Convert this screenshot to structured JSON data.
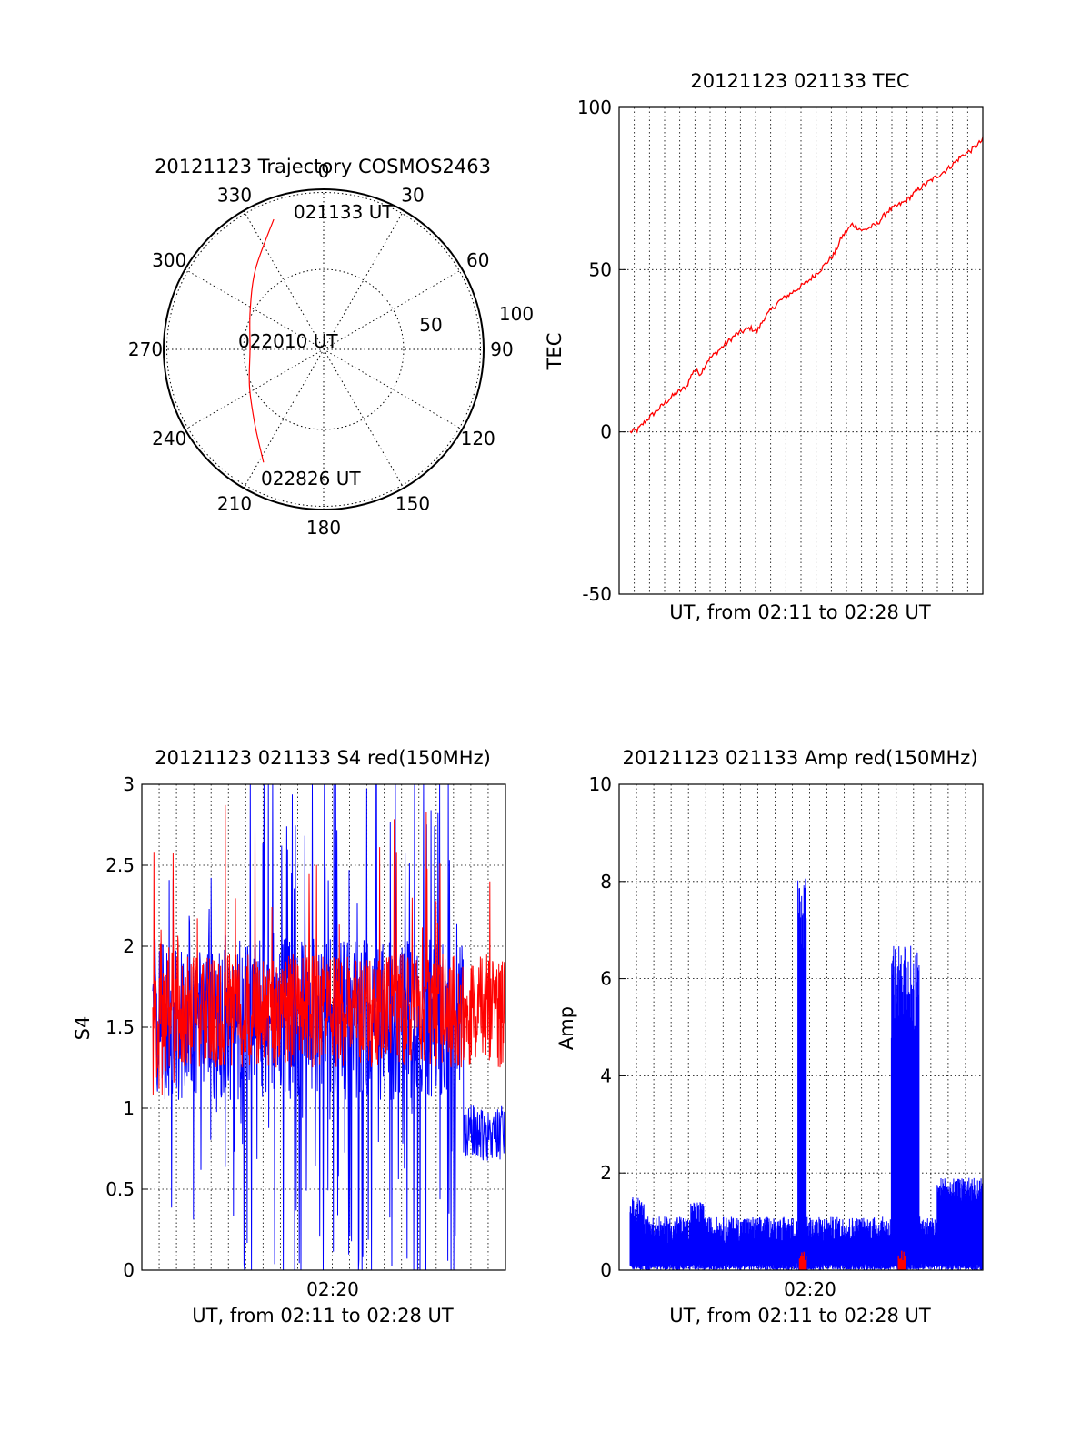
{
  "chart_data": [
    {
      "type": "polar",
      "title": "20121123 Trajectory COSMOS2463",
      "angle_ticks": [
        "0",
        "30",
        "60",
        "90",
        "120",
        "150",
        "180",
        "210",
        "240",
        "270",
        "300",
        "330"
      ],
      "radius_ticks": [
        "50",
        "100"
      ],
      "rlim": [
        0,
        100
      ],
      "grid": true,
      "annotations": [
        "021133 UT",
        "022010 UT",
        "022826 UT"
      ],
      "series": [
        {
          "color": "#ff0000",
          "points": [
            {
              "azimuth": 339,
              "radius": 87
            },
            {
              "azimuth": 320,
              "radius": 66
            },
            {
              "azimuth": 298,
              "radius": 52
            },
            {
              "azimuth": 270,
              "radius": 46
            },
            {
              "azimuth": 243,
              "radius": 52
            },
            {
              "azimuth": 222,
              "radius": 64
            },
            {
              "azimuth": 208,
              "radius": 80
            }
          ]
        }
      ]
    },
    {
      "type": "line",
      "title": "20121123 021133 TEC",
      "xlabel": "UT, from 02:11 to 02:28 UT",
      "ylabel": "TEC",
      "xlim": [
        0,
        1
      ],
      "ylim": [
        -50,
        100
      ],
      "yticks": [
        "-50",
        "0",
        "50",
        "100"
      ],
      "grid": true,
      "series": [
        {
          "color": "#ff0000",
          "x": [
            0,
            0.02,
            0.05,
            0.08,
            0.12,
            0.16,
            0.18,
            0.2,
            0.22,
            0.26,
            0.3,
            0.34,
            0.36,
            0.38,
            0.42,
            0.46,
            0.5,
            0.54,
            0.58,
            0.6,
            0.63,
            0.66,
            0.7,
            0.73,
            0.78,
            0.82,
            0.86,
            0.9,
            0.94,
            0.97,
            1.0
          ],
          "y": [
            0,
            0.5,
            4,
            7,
            11,
            14,
            19,
            18,
            22,
            26,
            30,
            32,
            31,
            35,
            40,
            43,
            46,
            50,
            55,
            60,
            64,
            62,
            64,
            68,
            71,
            75,
            78,
            81,
            85,
            87,
            90
          ]
        }
      ]
    },
    {
      "type": "line",
      "title": "20121123 021133 S4 red(150MHz)",
      "xlabel": "UT, from 02:11 to 02:28 UT",
      "ylabel": "S4",
      "xticks": [
        "02:20"
      ],
      "ylim": [
        0,
        3
      ],
      "yticks": [
        "0",
        "0.5",
        "1",
        "1.5",
        "2",
        "2.5",
        "3"
      ],
      "grid": true,
      "series": [
        {
          "color": "#0000ff",
          "baseline": 1.6,
          "spread": 0.8,
          "max": 3.0,
          "min": 0.0
        },
        {
          "color": "#ff0000",
          "baseline": 1.6,
          "spread": 0.35,
          "max": 2.5,
          "min": 1.1
        }
      ]
    },
    {
      "type": "line",
      "title": "20121123 021133 Amp red(150MHz)",
      "xlabel": "UT, from 02:11 to 02:28 UT",
      "ylabel": "Amp",
      "xticks": [
        "02:20"
      ],
      "ylim": [
        0,
        10
      ],
      "yticks": [
        "0",
        "2",
        "4",
        "6",
        "8",
        "10"
      ],
      "grid": true,
      "series": [
        {
          "color": "#0000ff",
          "baseline": 0.6,
          "peaks": [
            {
              "x": 0.49,
              "y": 8.1
            },
            {
              "x": 0.76,
              "y": 6.7
            },
            {
              "x": 0.8,
              "y": 6.5
            }
          ]
        },
        {
          "color": "#ff0000",
          "baseline": 0.05,
          "peaks": [
            {
              "x": 0.49,
              "y": 0.4
            },
            {
              "x": 0.77,
              "y": 0.4
            }
          ]
        }
      ]
    }
  ]
}
